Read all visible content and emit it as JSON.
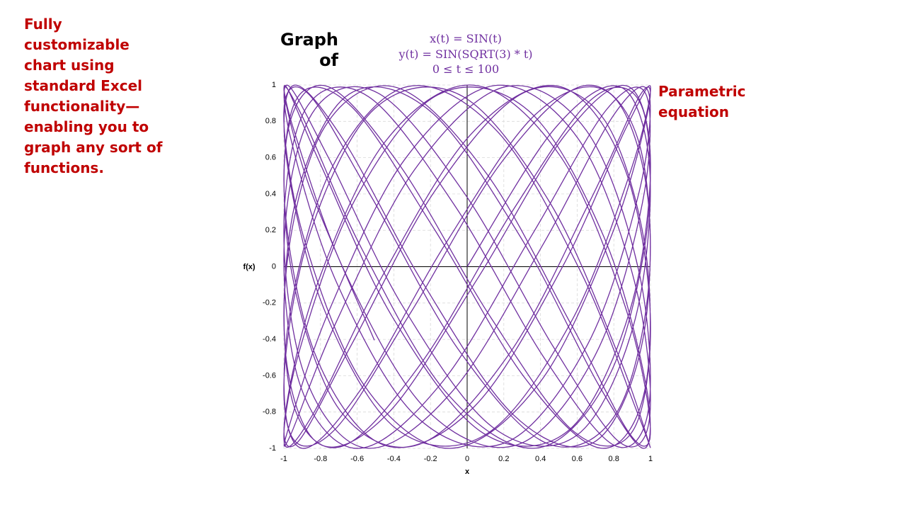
{
  "chart_data": {
    "type": "line",
    "title": "Graph of",
    "subtitle": [
      "x(t) = SIN(t)",
      "y(t) = SIN(SQRT(3) * t)",
      "0 ≤ t ≤ 100"
    ],
    "annotations": [
      "Fully customizable chart using standard Excel functionality—enabling you to graph any sort of functions.",
      "Parametric equation"
    ],
    "x_label": "x",
    "y_label": "f(x)",
    "xlim": [
      -1,
      1
    ],
    "ylim": [
      -1,
      1
    ],
    "xticks": [
      -1,
      -0.8,
      -0.6,
      -0.4,
      -0.2,
      0,
      0.2,
      0.4,
      0.6,
      0.8,
      1
    ],
    "yticks": [
      -1,
      -0.8,
      -0.6,
      -0.4,
      -0.2,
      0,
      0.2,
      0.4,
      0.6,
      0.8,
      1
    ],
    "grid": true,
    "color": "#7030a0",
    "x": [
      0,
      0.479,
      0.841,
      0.997,
      0.909,
      0.598,
      0.141,
      -0.351,
      -0.757,
      -0.978,
      -0.959,
      -0.706,
      -0.279,
      0.215,
      0.657,
      0.938,
      0.989,
      0.799,
      0.412,
      -0.075,
      -0.544,
      -0.88,
      -1,
      -0.876,
      -0.537,
      -0.066,
      0.42,
      0.804,
      0.991,
      0.935,
      0.65,
      0.207,
      -0.288,
      -0.712,
      -0.961,
      -0.976,
      -0.751,
      -0.343,
      0.15,
      0.605,
      0.913,
      0.997,
      0.837,
      0.472,
      -0.009,
      -0.487,
      -0.846,
      -0.998,
      -0.906,
      -0.591,
      -0.132,
      0.359,
      0.763,
      0.979,
      0.956,
      0.699,
      0.271,
      -0.224,
      -0.664,
      -0.941,
      -0.988,
      -0.793,
      -0.404,
      0.084,
      0.552,
      0.884,
      1,
      0.871,
      0.529,
      0.057,
      -0.428,
      -0.809,
      -0.992,
      -0.932,
      -0.643,
      -0.198,
      0.296,
      0.718,
      0.964,
      0.974,
      0.745,
      0.334,
      -0.159,
      -0.612,
      -0.917,
      -0.996,
      -0.832,
      -0.464,
      0.018,
      0.495,
      0.851,
      0.999,
      0.902,
      0.584,
      0.124,
      -0.367,
      -0.768,
      -0.981,
      -0.954,
      -0.693,
      -0.262,
      0.232,
      0.67,
      0.944,
      0.987,
      0.788,
      0.396,
      -0.093,
      -0.559,
      -0.888,
      -1,
      -0.867,
      -0.522,
      -0.049,
      0.436,
      0.814,
      0.993,
      0.928,
      0.637,
      0.189,
      -0.305,
      -0.724,
      -0.966,
      -0.972,
      -0.739,
      -0.326,
      0.167,
      0.62,
      0.92,
      0.995,
      0.827,
      0.456,
      -0.027,
      -0.503,
      -0.855,
      -0.999,
      -0.898,
      -0.577,
      -0.115,
      0.375,
      0.774,
      0.983,
      0.951,
      0.687,
      0.254,
      -0.241,
      -0.677,
      -0.947,
      -0.985,
      -0.782,
      -0.388,
      0.102,
      0.566,
      0.892,
      1,
      0.862,
      0.514,
      0.04,
      -0.444,
      -0.819,
      -0.994,
      -0.925,
      -0.63,
      -0.18,
      0.313,
      0.73,
      0.968,
      0.97,
      0.733,
      0.318,
      -0.176,
      -0.627,
      -0.923,
      -0.994,
      -0.822,
      -0.448,
      0.035,
      0.51,
      0.86,
      0.999,
      0.894,
      0.57,
      0.106,
      -0.384,
      -0.779,
      -0.984,
      -0.948,
      -0.68,
      -0.245,
      0.25,
      0.683,
      0.95,
      0.984,
      0.777,
      0.38,
      -0.11,
      -0.573,
      -0.896,
      -0.999,
      -0.858,
      -0.506
    ],
    "values": [
      0,
      0.762,
      0.987,
      0.517,
      -0.317,
      -0.928,
      -0.885,
      -0.219,
      0.601,
      0.998,
      0.692,
      -0.101,
      -0.823,
      -0.966,
      -0.428,
      0.411,
      0.961,
      0.834,
      0.119,
      -0.679,
      -0.999,
      -0.616,
      0.202,
      0.877,
      0.935,
      0.334,
      -0.502,
      -0.984,
      -0.773,
      -0.018,
      0.75,
      0.99,
      0.532,
      -0.3,
      -0.921,
      -0.894,
      -0.237,
      0.587,
      0.997,
      0.705,
      -0.083,
      -0.813,
      -0.97,
      -0.444,
      0.395,
      0.956,
      0.843,
      0.137,
      -0.666,
      -1,
      -0.63,
      0.184,
      0.868,
      0.94,
      0.351,
      -0.486,
      -0.981,
      -0.785,
      -0.036,
      0.738,
      0.992,
      0.548,
      -0.283,
      -0.914,
      -0.902,
      -0.254,
      0.572,
      0.995,
      0.718,
      -0.065,
      -0.803,
      -0.974,
      -0.46,
      0.378,
      0.95,
      0.853,
      0.155,
      -0.652,
      -1,
      -0.643,
      0.166,
      0.859,
      0.946,
      0.368,
      -0.47,
      -0.977,
      -0.796,
      -0.054,
      0.726,
      0.994,
      0.563,
      -0.265,
      -0.906,
      -0.909,
      -0.272,
      0.557,
      0.994,
      0.73,
      -0.047,
      -0.792,
      -0.978,
      -0.476,
      0.362,
      0.945,
      0.862,
      0.173,
      -0.638,
      -1,
      -0.657,
      0.148,
      0.849,
      0.952,
      0.384,
      -0.454,
      -0.973,
      -0.806,
      -0.072,
      0.713,
      0.996,
      0.577,
      -0.248,
      -0.899,
      -0.916,
      -0.289,
      0.542,
      0.991,
      0.742,
      -0.029,
      -0.781,
      -0.982,
      -0.492,
      0.345,
      0.939,
      0.871,
      0.19,
      -0.625,
      -1,
      -0.671,
      0.131,
      0.84,
      0.957,
      0.401,
      -0.438,
      -0.969,
      -0.817,
      -0.09,
      0.701,
      0.998,
      0.592,
      -0.23,
      -0.891,
      -0.923,
      -0.306,
      0.527,
      0.989,
      0.754,
      -0.012,
      -0.769,
      -0.985,
      -0.507,
      0.328,
      0.932,
      0.88,
      0.208,
      -0.61,
      -0.999,
      -0.684,
      0.113,
      0.83,
      0.962,
      0.417,
      -0.422,
      -0.964,
      -0.827,
      -0.108,
      0.687,
      0.999,
      0.606,
      -0.213,
      -0.882,
      -0.93,
      -0.323,
      0.512,
      0.986,
      0.766,
      0.006,
      -0.758,
      -0.988,
      -0.523,
      0.311,
      0.925,
      0.888,
      0.226,
      -0.596,
      -0.998,
      -0.697,
      0.095,
      0.82,
      0.968,
      0.434,
      -0.405
    ]
  }
}
